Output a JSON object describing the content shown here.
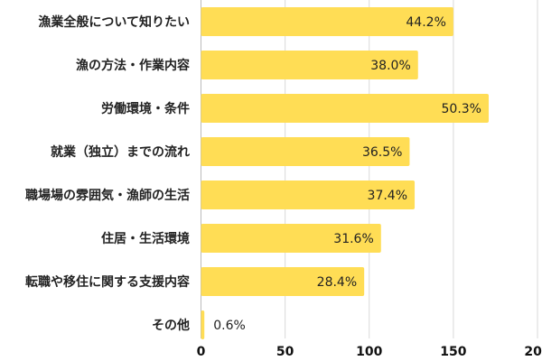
{
  "chart_data": {
    "type": "bar",
    "orientation": "horizontal",
    "categories": [
      "漁業全般について知りたい",
      "漁の方法・作業内容",
      "労働環境・条件",
      "就業（独立）までの流れ",
      "職場場の雰囲気・漁師の生活",
      "住居・生活環境",
      "転職や移住に関する支援内容",
      "その他"
    ],
    "values": [
      150,
      129,
      171,
      124,
      127,
      107,
      97,
      2
    ],
    "data_labels": [
      "44.2%",
      "38.0%",
      "50.3%",
      "36.5%",
      "37.4%",
      "31.6%",
      "28.4%",
      "0.6%"
    ],
    "xlim": [
      0,
      200
    ],
    "xticks": [
      "0",
      "50",
      "100",
      "150",
      "200"
    ],
    "grid": true,
    "bar_color": "#FFDD55",
    "grid_color": "#D9D9D9"
  }
}
